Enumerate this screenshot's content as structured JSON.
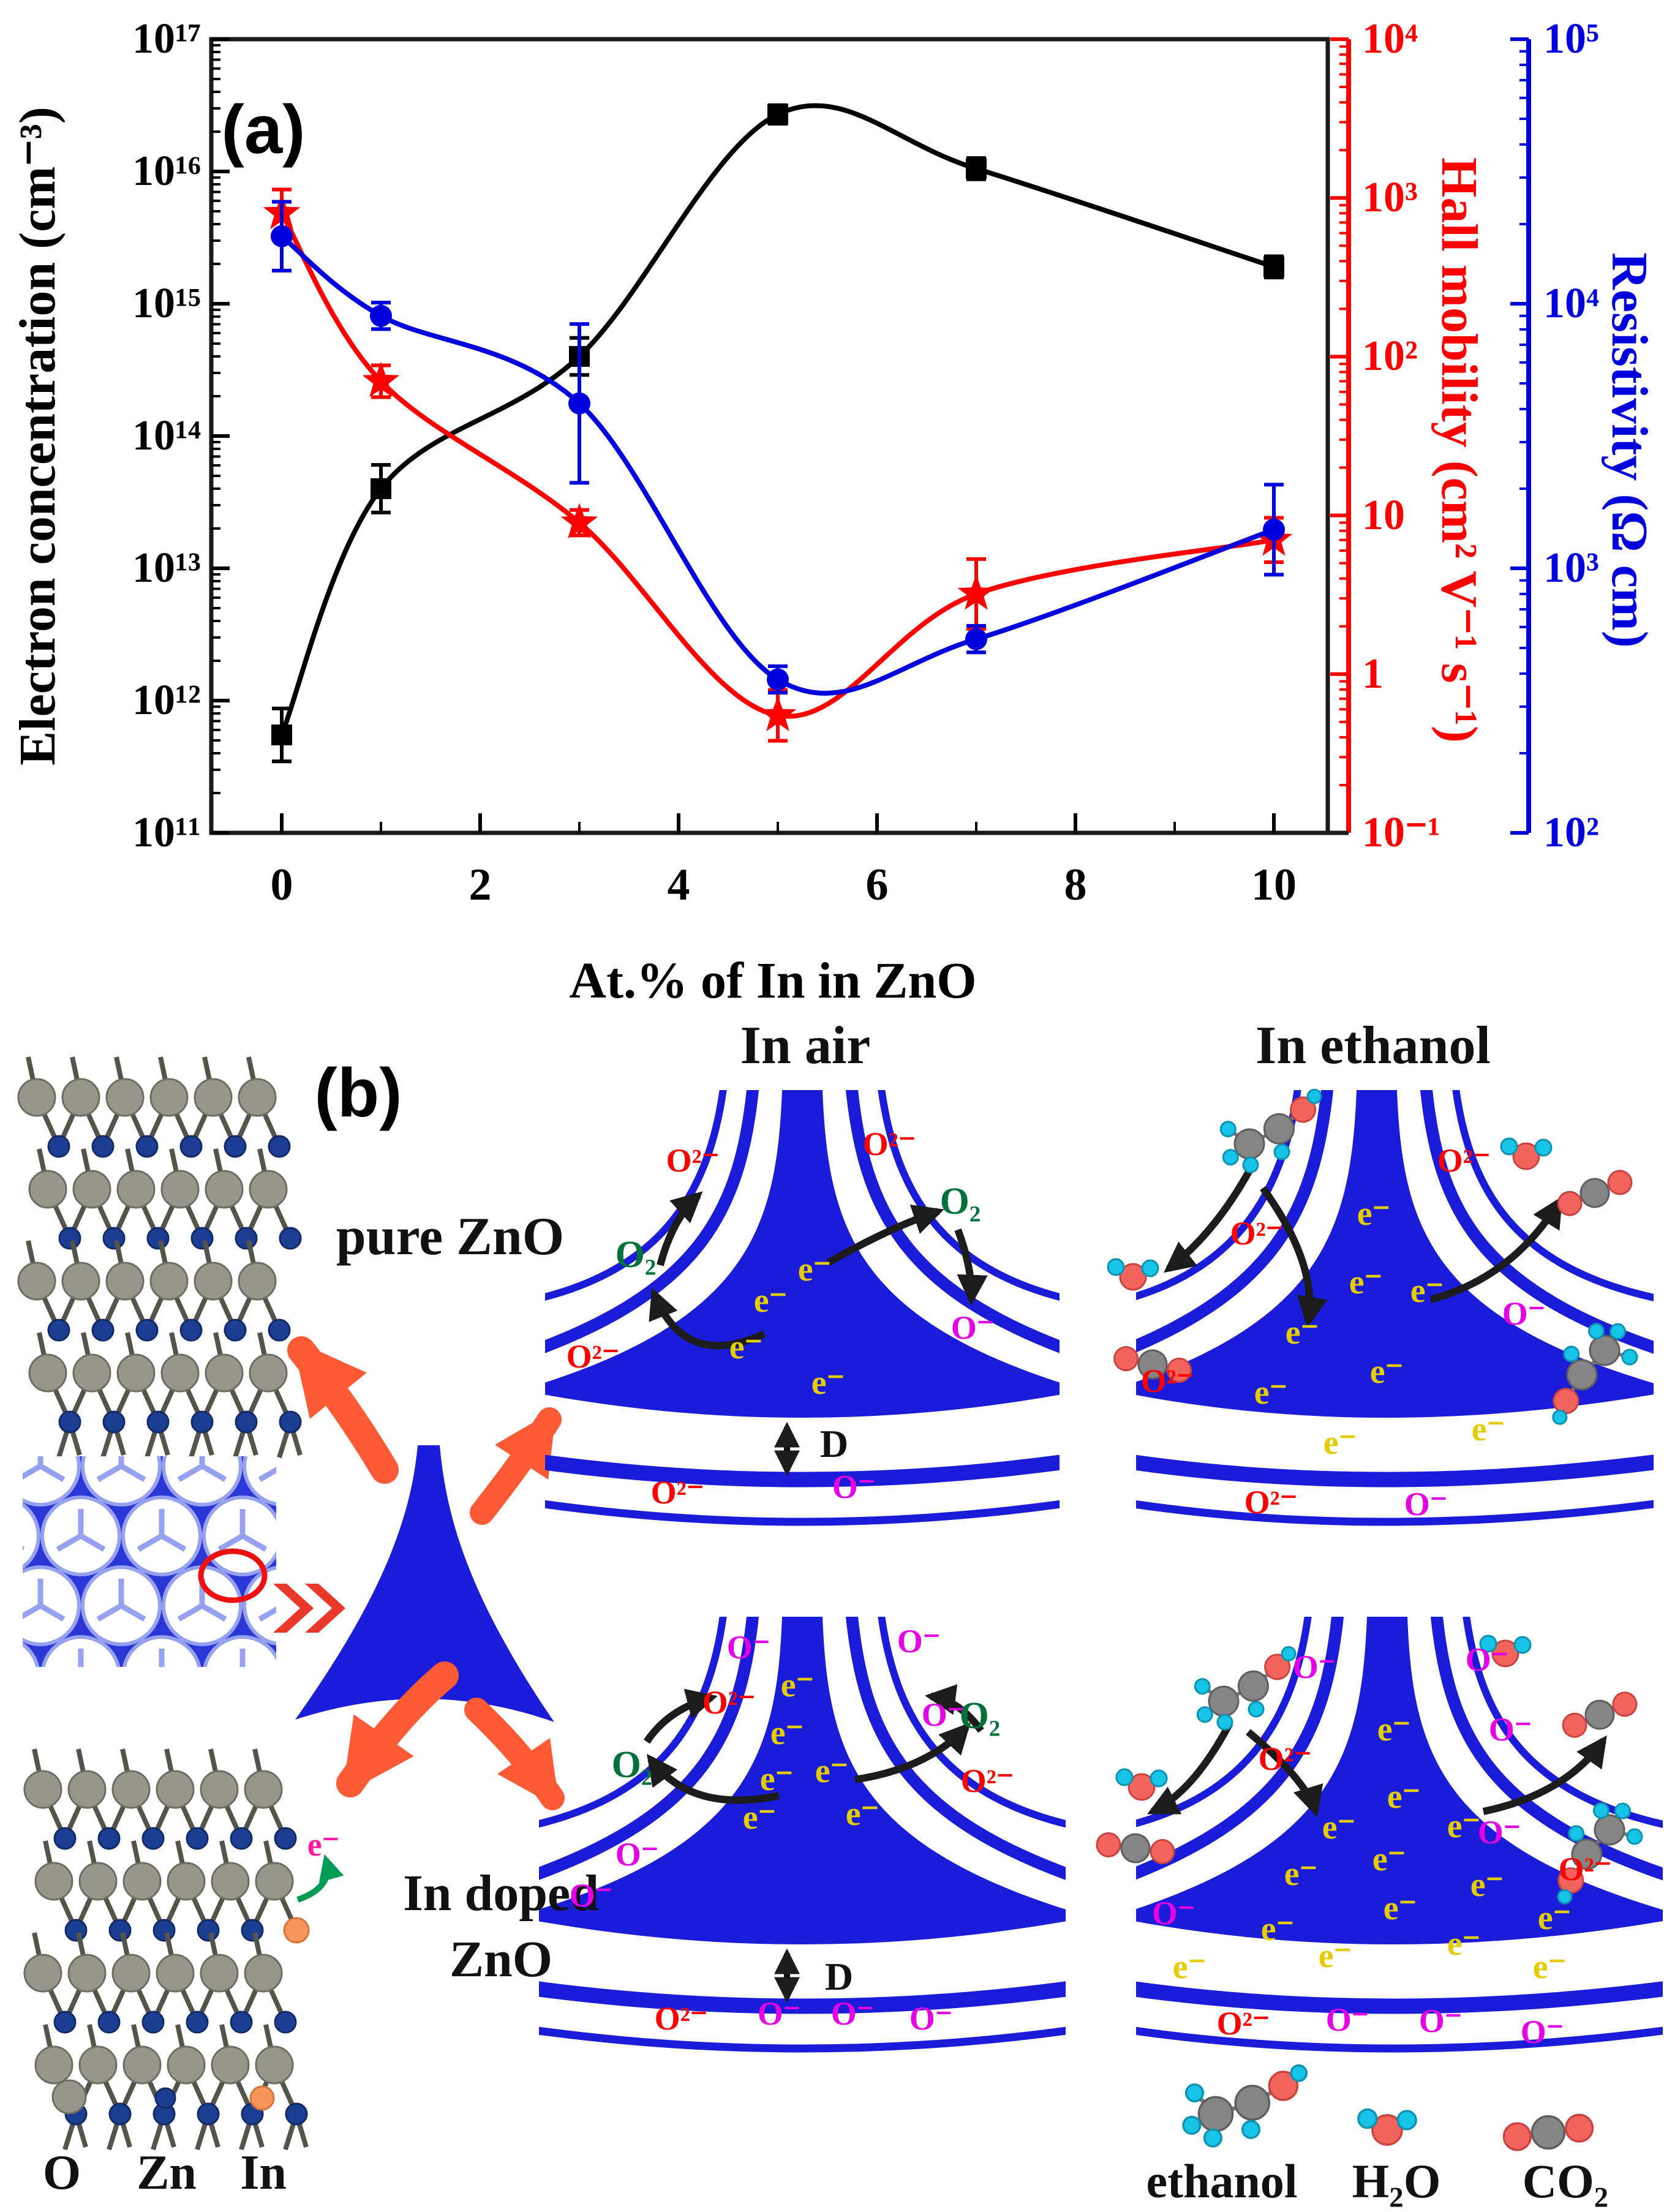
{
  "figure": {
    "panel_a_label": "(a)",
    "panel_b_label": "(b)"
  },
  "chart_data": {
    "type": "line",
    "title": "",
    "xlabel": "At.% of In in ZnO",
    "x_ticks": [
      "0",
      "2",
      "4",
      "6",
      "8",
      "10"
    ],
    "x_tick_values": [
      0,
      2,
      4,
      6,
      8,
      10
    ],
    "x_minor_tick_values": [
      1,
      3,
      5,
      7,
      9
    ],
    "x": [
      0,
      1,
      3,
      5,
      7,
      10
    ],
    "grid": false,
    "legend_position": "none",
    "axes": {
      "left": {
        "title": "Electron concentration (cm⁻³)",
        "color": "#000000",
        "ticks": [
          "10¹⁷",
          "10¹⁶",
          "10¹⁵",
          "10¹⁴",
          "10¹³",
          "10¹²",
          "10¹¹"
        ],
        "log_range": [
          11,
          17
        ]
      },
      "right_inner": {
        "title": "Hall mobility (cm² V⁻¹ s⁻¹)",
        "color": "#ff0000",
        "ticks": [
          "10⁴",
          "10³",
          "10²",
          "10",
          "1",
          "10⁻¹"
        ],
        "log_range": [
          -1,
          4
        ]
      },
      "right_outer": {
        "title": "Resistivity (Ω cm)",
        "color": "#0000dd",
        "ticks": [
          "10⁵",
          "10⁴",
          "10³",
          "10²"
        ],
        "log_range": [
          2,
          5
        ]
      }
    },
    "series": [
      {
        "name": "Electron concentration",
        "axis": "left",
        "color": "#000000",
        "marker": "square",
        "values": [
          550000000000.0,
          40000000000000.0,
          400000000000000.0,
          2.7e+16,
          1.05e+16,
          1900000000000000.0
        ],
        "err_decades": [
          0.2,
          0.18,
          0.14,
          0.07,
          0.08,
          0.08
        ]
      },
      {
        "name": "Hall mobility",
        "axis": "right_inner",
        "color": "#ff0000",
        "marker": "star",
        "values": [
          800,
          70,
          9,
          0.55,
          3.2,
          7
        ],
        "err_decades": [
          0.15,
          0.1,
          0.08,
          0.16,
          0.22,
          0.14
        ]
      },
      {
        "name": "Resistivity",
        "axis": "right_outer",
        "color": "#0000dd",
        "marker": "circle",
        "values": [
          18000,
          9000,
          4200,
          380,
          540,
          1400
        ],
        "err_decades": [
          0.13,
          0.05,
          0.3,
          0.05,
          0.05,
          0.17
        ]
      }
    ]
  },
  "panel_b": {
    "column_titles": {
      "air": "In air",
      "ethanol": "In ethanol"
    },
    "structure_labels": {
      "pure": "pure ZnO",
      "doped_line1": "In doped",
      "doped_line2": "ZnO"
    },
    "species": {
      "electron": "e⁻",
      "oxygen_2minus": "O²⁻",
      "oxygen_minus": "O⁻",
      "oxygen_gas": "O₂",
      "depletion": "D"
    },
    "atom_legend": [
      {
        "symbol": "O",
        "color": "#97968a"
      },
      {
        "symbol": "Zn",
        "color": "#1c3e92"
      },
      {
        "symbol": "In",
        "color": "#f8955a"
      }
    ],
    "molecule_legend": [
      {
        "name": "ethanol"
      },
      {
        "name": "H₂O"
      },
      {
        "name": "CO₂"
      }
    ],
    "colors": {
      "grain_blue": "#1b1cd8",
      "electron_yellow": "#e3cd00",
      "o2minus_red": "#ff0000",
      "ominus_magenta": "#e400e4",
      "o2_green": "#00713a",
      "transfer_arrow": "#ff5a36"
    }
  }
}
